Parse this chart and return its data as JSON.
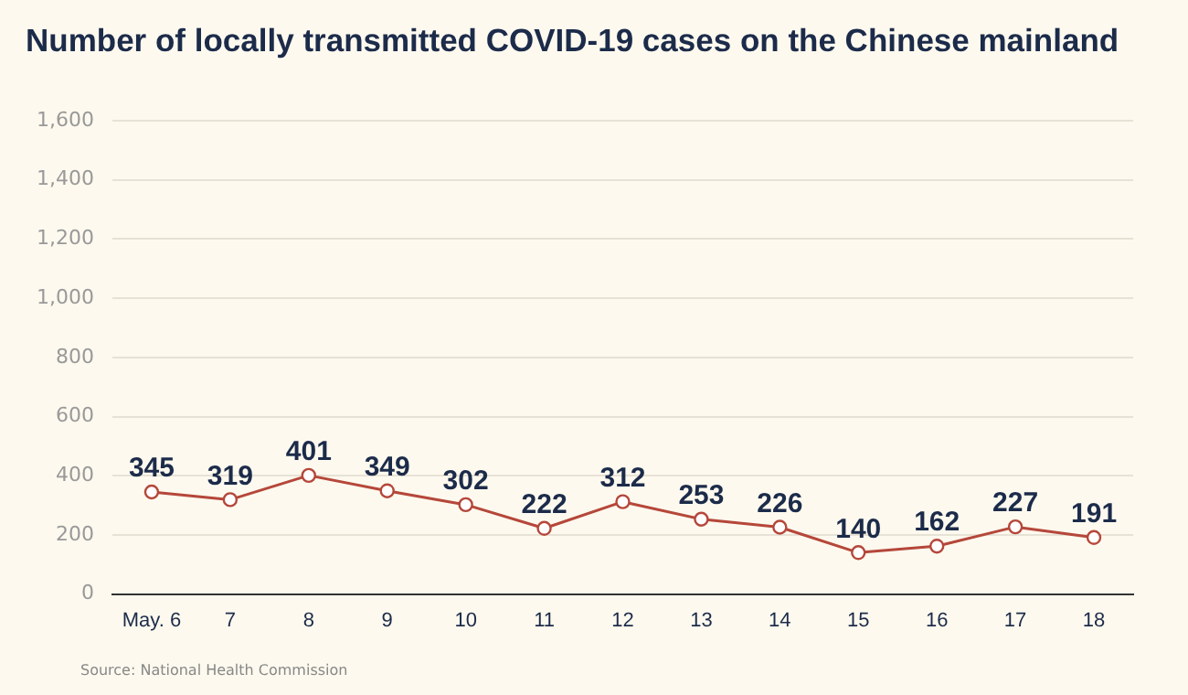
{
  "chart_data": {
    "type": "line",
    "title": "Number of locally transmitted COVID-19 cases on the Chinese mainland",
    "categories": [
      "May. 6",
      "7",
      "8",
      "9",
      "10",
      "11",
      "12",
      "13",
      "14",
      "15",
      "16",
      "17",
      "18"
    ],
    "series": [
      {
        "color": "#b5473a",
        "values": [
          345,
          319,
          401,
          349,
          302,
          222,
          312,
          253,
          226,
          140,
          162,
          227,
          191
        ]
      }
    ],
    "ylim": [
      0,
      1600
    ],
    "yticks": [
      0,
      200,
      400,
      600,
      800,
      {
        "value": 1000,
        "label": "1,000"
      },
      {
        "value": 1200,
        "label": "1,200"
      },
      {
        "value": 1400,
        "label": "1,400"
      },
      {
        "value": 1600,
        "label": "1,600"
      }
    ],
    "grid": "y",
    "legend": false,
    "marker": "circle",
    "line_style": "solid",
    "data_labels": true,
    "annotations": [
      "Source: National Health Commission"
    ]
  }
}
